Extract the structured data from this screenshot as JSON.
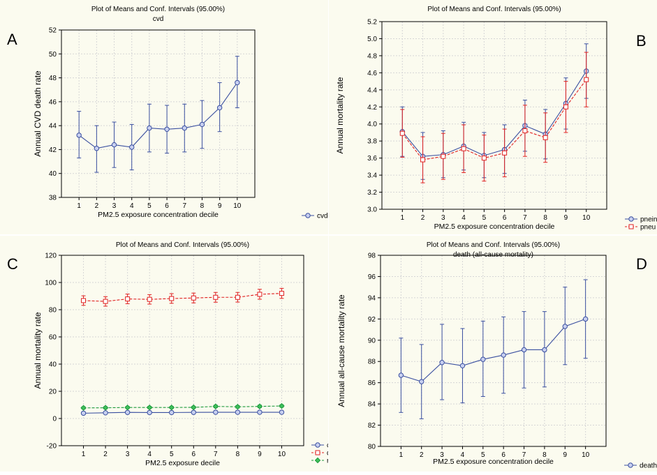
{
  "panel_letters": {
    "A": "A",
    "B": "B",
    "C": "C",
    "D": "D"
  },
  "chart_data": [
    {
      "panel": "A",
      "type": "line",
      "title": "Plot of Means and Conf. Intervals (95.00%)",
      "subtitle": "cvd",
      "xlabel": "PM2.5 exposure concentration decile",
      "ylabel": "Annual CVD death rate",
      "categories": [
        "1",
        "2",
        "3",
        "4",
        "5",
        "6",
        "7",
        "8",
        "9",
        "10"
      ],
      "ylim": [
        38,
        52
      ],
      "yticks": [
        38,
        40,
        42,
        44,
        46,
        48,
        50,
        52
      ],
      "grid": true,
      "legend": "bottom-right",
      "series": [
        {
          "name": "cvd",
          "color": "#3a4fa0",
          "marker": "circle",
          "dashed": false,
          "values": [
            43.2,
            42.1,
            42.4,
            42.2,
            43.8,
            43.7,
            43.8,
            44.1,
            45.5,
            47.6
          ],
          "lower": [
            41.3,
            40.1,
            40.5,
            40.3,
            41.8,
            41.7,
            41.8,
            42.1,
            43.5,
            45.5
          ],
          "upper": [
            45.2,
            44.0,
            44.3,
            44.1,
            45.8,
            45.7,
            45.8,
            46.1,
            47.6,
            49.8
          ]
        }
      ]
    },
    {
      "panel": "B",
      "type": "line",
      "title": "Plot of Means and Conf. Intervals (95.00%)",
      "subtitle": "",
      "xlabel": "PM2.5 exposure concentration decile",
      "ylabel": "Annual mortality rate",
      "categories": [
        "1",
        "2",
        "3",
        "4",
        "5",
        "6",
        "7",
        "8",
        "9",
        "10"
      ],
      "ylim": [
        3.0,
        5.2
      ],
      "yticks": [
        3.0,
        3.2,
        3.4,
        3.6,
        3.8,
        4.0,
        4.2,
        4.4,
        4.6,
        4.8,
        5.0,
        5.2
      ],
      "grid": true,
      "legend": "bottom-right",
      "series": [
        {
          "name": "pneinf",
          "color": "#3a4fa0",
          "marker": "circle",
          "dashed": false,
          "values": [
            3.91,
            3.62,
            3.64,
            3.74,
            3.63,
            3.7,
            3.98,
            3.88,
            4.24,
            4.62
          ],
          "lower": [
            3.62,
            3.35,
            3.37,
            3.46,
            3.37,
            3.42,
            3.68,
            3.59,
            3.94,
            4.3
          ],
          "upper": [
            4.2,
            3.9,
            3.92,
            4.02,
            3.9,
            3.99,
            4.28,
            4.17,
            4.54,
            4.94
          ]
        },
        {
          "name": "pneu",
          "color": "#e02020",
          "marker": "square",
          "dashed": true,
          "values": [
            3.89,
            3.58,
            3.62,
            3.71,
            3.6,
            3.66,
            3.92,
            3.84,
            4.2,
            4.52
          ],
          "lower": [
            3.61,
            3.31,
            3.35,
            3.43,
            3.33,
            3.38,
            3.62,
            3.55,
            3.9,
            4.2
          ],
          "upper": [
            4.17,
            3.85,
            3.89,
            3.99,
            3.87,
            3.94,
            4.22,
            4.13,
            4.5,
            4.84
          ]
        }
      ]
    },
    {
      "panel": "C",
      "type": "line",
      "title": "Plot of Means and Conf. Intervals (95.00%)",
      "subtitle": "",
      "xlabel": "PM2.5 exposure decile",
      "ylabel": "Annual mortality rate",
      "categories": [
        "1",
        "2",
        "3",
        "4",
        "5",
        "6",
        "7",
        "8",
        "9",
        "10"
      ],
      "ylim": [
        -20,
        120
      ],
      "yticks": [
        -20,
        0,
        20,
        40,
        60,
        80,
        100,
        120
      ],
      "grid": true,
      "legend": "bottom-right",
      "series": [
        {
          "name": "copd",
          "color": "#3a4fa0",
          "marker": "circle",
          "dashed": false,
          "values": [
            3.9,
            4.2,
            4.5,
            4.4,
            4.4,
            4.5,
            4.6,
            4.6,
            4.6,
            4.6
          ],
          "lower": [
            3.0,
            3.3,
            3.6,
            3.5,
            3.5,
            3.6,
            3.7,
            3.7,
            3.7,
            3.7
          ],
          "upper": [
            4.8,
            5.1,
            5.4,
            5.3,
            5.3,
            5.4,
            5.5,
            5.5,
            5.5,
            5.5
          ]
        },
        {
          "name": "death",
          "color": "#e02020",
          "marker": "square",
          "dashed": true,
          "values": [
            86.7,
            86.1,
            87.9,
            87.6,
            88.2,
            88.6,
            89.1,
            89.1,
            91.3,
            92.0
          ],
          "lower": [
            83.2,
            82.6,
            84.4,
            84.1,
            84.7,
            85.0,
            85.5,
            85.6,
            87.7,
            88.3
          ],
          "upper": [
            90.2,
            89.6,
            91.5,
            91.1,
            91.8,
            92.2,
            92.7,
            92.7,
            95.0,
            95.7
          ]
        },
        {
          "name": "resp",
          "color": "#1e9a3c",
          "marker": "diamond",
          "dashed": true,
          "values": [
            7.8,
            7.9,
            8.1,
            8.1,
            8.1,
            8.2,
            8.9,
            8.6,
            8.9,
            9.2
          ],
          "lower": [
            7.0,
            7.1,
            7.3,
            7.3,
            7.3,
            7.4,
            8.0,
            7.7,
            8.0,
            8.3
          ],
          "upper": [
            8.6,
            8.7,
            8.9,
            8.9,
            8.9,
            9.0,
            9.8,
            9.5,
            9.8,
            10.1
          ]
        }
      ]
    },
    {
      "panel": "D",
      "type": "line",
      "title": "Plot of Means and Conf. Intervals (95.00%)",
      "subtitle": "death (all-cause mortality)",
      "xlabel": "PM2.5 exposure concentration decile",
      "ylabel": "Annual all-cause mortality rate",
      "categories": [
        "1",
        "2",
        "3",
        "4",
        "5",
        "6",
        "7",
        "8",
        "9",
        "10"
      ],
      "ylim": [
        80,
        98
      ],
      "yticks": [
        80,
        82,
        84,
        86,
        88,
        90,
        92,
        94,
        96,
        98
      ],
      "grid": true,
      "legend": "bottom-right",
      "series": [
        {
          "name": "death",
          "color": "#3a4fa0",
          "marker": "circle",
          "dashed": false,
          "values": [
            86.7,
            86.1,
            87.9,
            87.6,
            88.2,
            88.6,
            89.1,
            89.1,
            91.3,
            92.0
          ],
          "lower": [
            83.2,
            82.6,
            84.4,
            84.1,
            84.7,
            85.0,
            85.5,
            85.6,
            87.7,
            88.3
          ],
          "upper": [
            90.2,
            89.6,
            91.5,
            91.1,
            91.8,
            92.2,
            92.7,
            92.7,
            95.0,
            95.7
          ]
        }
      ]
    }
  ]
}
